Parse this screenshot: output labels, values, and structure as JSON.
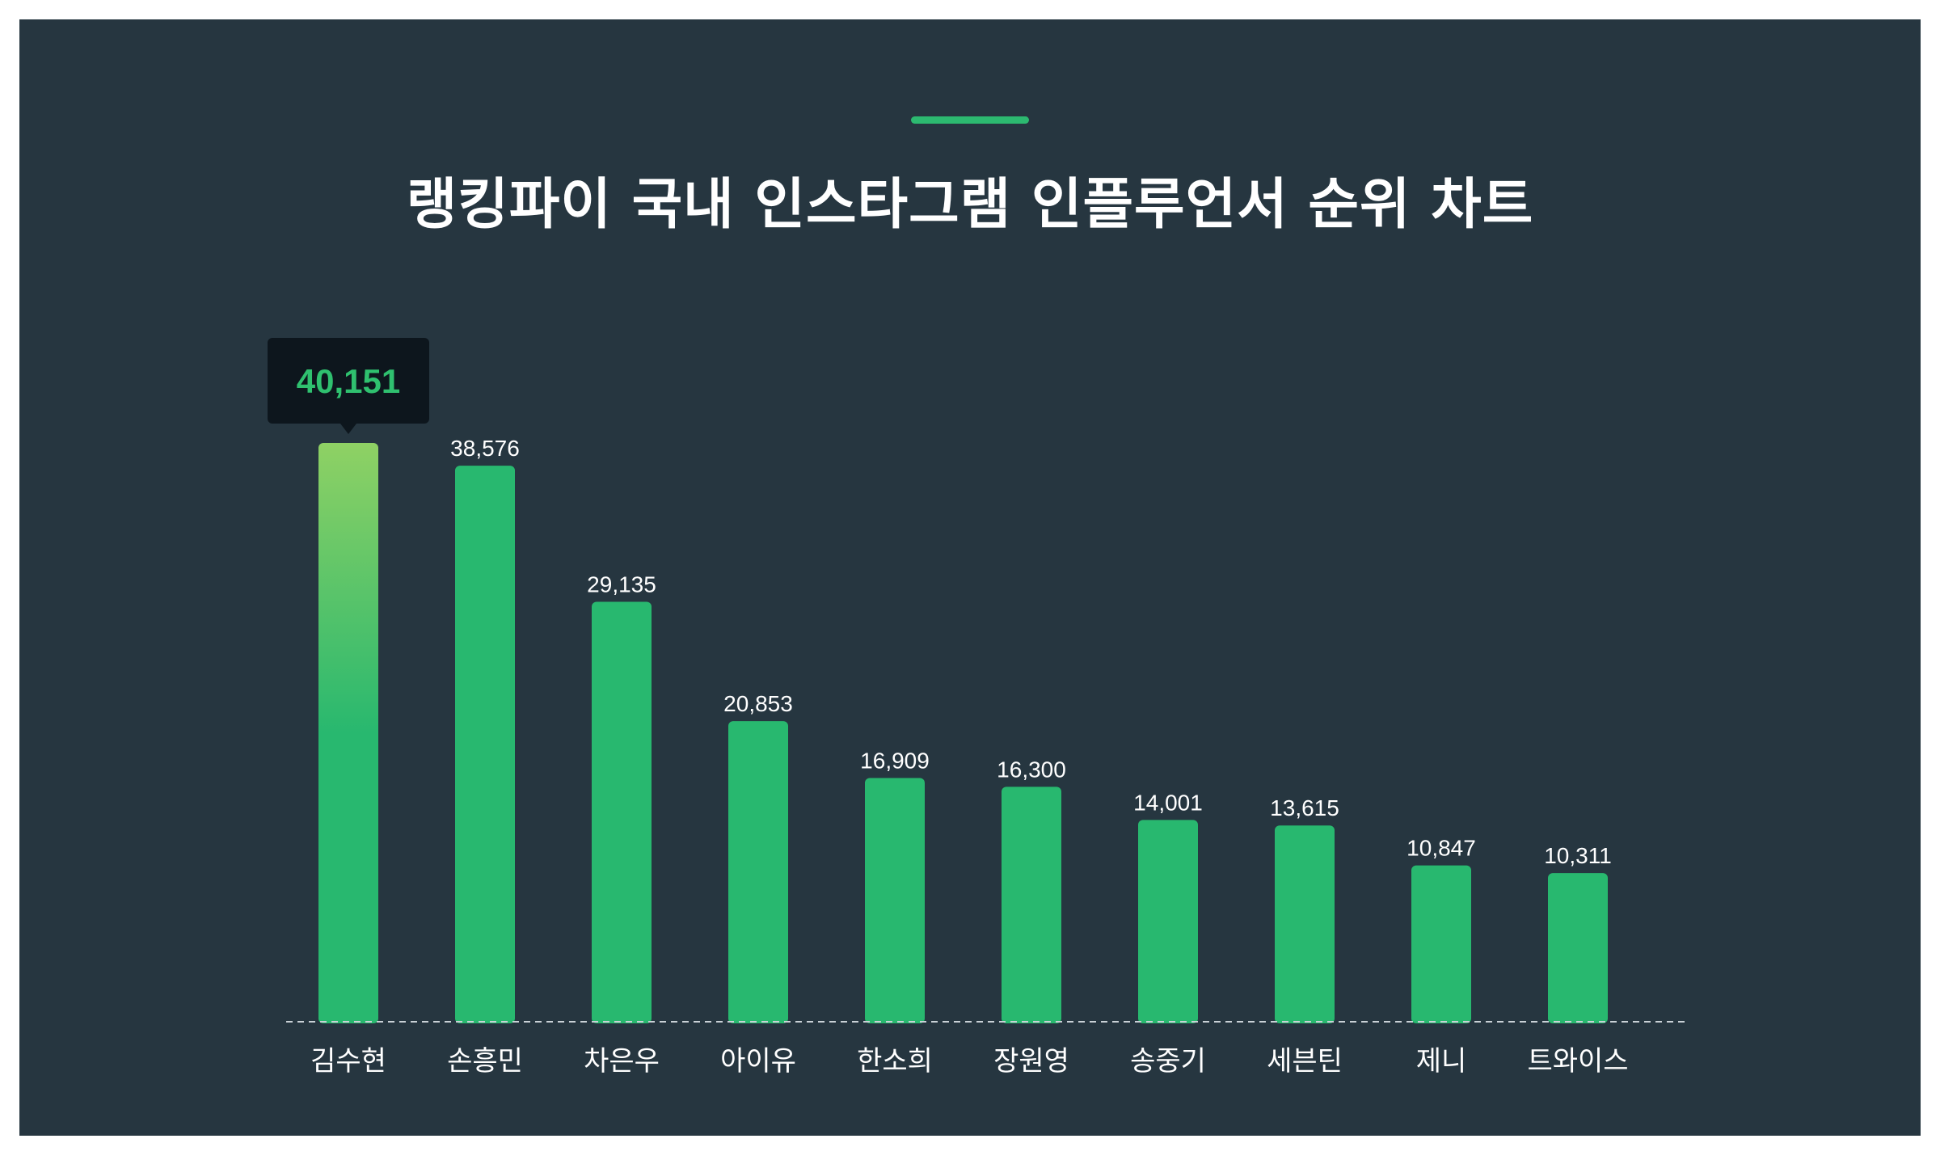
{
  "title": "랭킹파이 국내 인스타그램 인플루언서 순위 차트",
  "colors": {
    "background": "#263640",
    "accent": "#2cb970",
    "bar": "#28b86f",
    "highlight_top": "#8fd164",
    "tooltip_bg": "#0d161d",
    "tooltip_text": "#2fc06f"
  },
  "chart_data": {
    "type": "bar",
    "title": "랭킹파이 국내 인스타그램 인플루언서 순위 차트",
    "xlabel": "",
    "ylabel": "",
    "categories": [
      "김수현",
      "손흥민",
      "차은우",
      "아이유",
      "한소희",
      "장원영",
      "송중기",
      "세븐틴",
      "제니",
      "트와이스"
    ],
    "values": [
      40151,
      38576,
      29135,
      20853,
      16909,
      16300,
      14001,
      13615,
      10847,
      10311
    ],
    "value_labels": [
      "40,151",
      "38,576",
      "29,135",
      "20,853",
      "16,909",
      "16,300",
      "14,001",
      "13,615",
      "10,847",
      "10,311"
    ],
    "ylim": [
      0,
      40151
    ],
    "grid": false,
    "legend": "none",
    "highlight_index": 0
  }
}
